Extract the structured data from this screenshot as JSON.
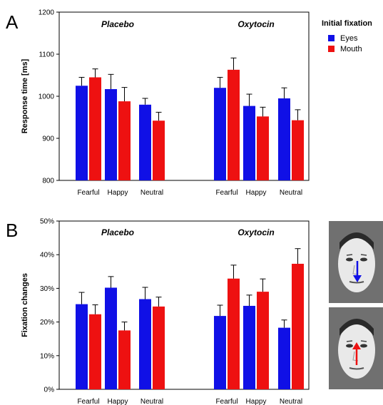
{
  "legend": {
    "title": "Initial fixation",
    "items": [
      {
        "name": "Eyes",
        "color": "#1010e6"
      },
      {
        "name": "Mouth",
        "color": "#ee1111"
      }
    ]
  },
  "chart_data": [
    {
      "panel": "A",
      "type": "bar",
      "ylabel": "Response time [ms]",
      "ylim": [
        800,
        1200
      ],
      "yticks": [
        800,
        900,
        1000,
        1100,
        1200
      ],
      "ytick_labels": [
        "800",
        "900",
        "1000",
        "1100",
        "1200"
      ],
      "groups": [
        "Placebo",
        "Oxytocin"
      ],
      "categories": [
        "Fearful",
        "Happy",
        "Neutral"
      ],
      "series": [
        {
          "name": "Eyes",
          "values": [
            [
              1025,
              1017,
              980
            ],
            [
              1020,
              977,
              995
            ]
          ],
          "errors": [
            [
              20,
              35,
              15
            ],
            [
              25,
              28,
              25
            ]
          ]
        },
        {
          "name": "Mouth",
          "values": [
            [
              1045,
              988,
              942
            ],
            [
              1063,
              952,
              943
            ]
          ],
          "errors": [
            [
              20,
              33,
              20
            ],
            [
              28,
              22,
              25
            ]
          ]
        }
      ]
    },
    {
      "panel": "B",
      "type": "bar",
      "ylabel": "Fixation changes",
      "ylim": [
        0,
        50
      ],
      "yticks": [
        0,
        10,
        20,
        30,
        40,
        50
      ],
      "ytick_labels": [
        "0%",
        "10%",
        "20%",
        "30%",
        "40%",
        "50%"
      ],
      "groups": [
        "Placebo",
        "Oxytocin"
      ],
      "categories": [
        "Fearful",
        "Happy",
        "Neutral"
      ],
      "series": [
        {
          "name": "Eyes",
          "values": [
            [
              25.3,
              30.2,
              26.8
            ],
            [
              21.8,
              24.8,
              18.3
            ]
          ],
          "errors": [
            [
              3.5,
              3.3,
              3.5
            ],
            [
              3.2,
              3.2,
              2.3
            ]
          ]
        },
        {
          "name": "Mouth",
          "values": [
            [
              22.3,
              17.5,
              24.6
            ],
            [
              32.9,
              29.0,
              37.3
            ]
          ],
          "errors": [
            [
              2.8,
              2.5,
              2.8
            ],
            [
              4.0,
              3.8,
              4.5
            ]
          ]
        }
      ]
    }
  ]
}
